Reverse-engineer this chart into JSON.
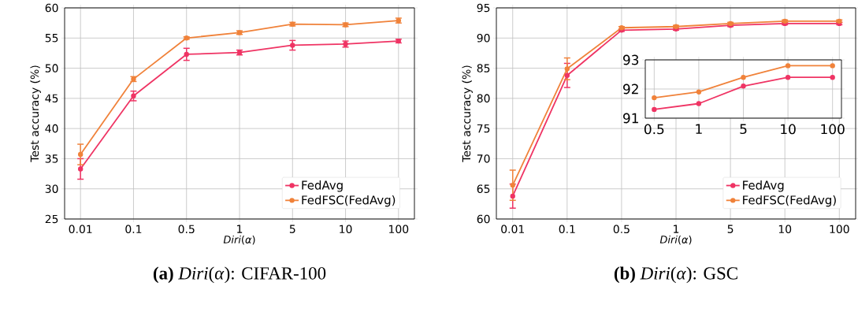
{
  "chart_data": [
    {
      "type": "line",
      "title": "**(a)** *Diri*(*α*): CIFAR-100",
      "xlabel": "*Diri*(*α*)",
      "ylabel": "Test accuracy (%)",
      "categories": [
        "0.01",
        "0.1",
        "0.5",
        "1",
        "5",
        "10",
        "100"
      ],
      "ylim": [
        25,
        60
      ],
      "yticks": [
        25,
        30,
        35,
        40,
        45,
        50,
        55,
        60
      ],
      "grid": true,
      "legend": "bottom right",
      "marker": "circle",
      "series": [
        {
          "name": "FedAvg",
          "color": "#ef3464",
          "values": [
            33.3,
            45.4,
            52.3,
            52.6,
            53.8,
            54.0,
            54.5
          ],
          "errors": [
            1.7,
            0.8,
            1.0,
            0.4,
            0.8,
            0.5,
            0.3
          ]
        },
        {
          "name": "FedFSC(FedAvg)",
          "color": "#f0823a",
          "values": [
            35.7,
            48.2,
            55.0,
            55.9,
            57.3,
            57.2,
            57.9
          ],
          "errors": [
            1.7,
            0.4,
            0.2,
            0.3,
            0.3,
            0.3,
            0.4
          ]
        }
      ]
    },
    {
      "type": "line",
      "title": "**(b)** *Diri*(*α*): GSC",
      "xlabel": "*Diri*(*α*)",
      "ylabel": "Test accuracy (%)",
      "categories": [
        "0.01",
        "0.1",
        "0.5",
        "1",
        "5",
        "10",
        "100"
      ],
      "ylim": [
        60,
        95
      ],
      "yticks": [
        60,
        65,
        70,
        75,
        80,
        85,
        90,
        95
      ],
      "grid": true,
      "legend": "bottom right",
      "marker": "circle",
      "series": [
        {
          "name": "FedAvg",
          "color": "#ef3464",
          "values": [
            63.8,
            83.8,
            91.3,
            91.5,
            92.1,
            92.4,
            92.4
          ],
          "errors": [
            2.0,
            2.0,
            0.2,
            0.2,
            0.2,
            0.2,
            0.2
          ]
        },
        {
          "name": "FedFSC(FedAvg)",
          "color": "#f0823a",
          "values": [
            65.6,
            84.9,
            91.7,
            91.9,
            92.4,
            92.8,
            92.8
          ],
          "errors": [
            2.5,
            1.8,
            0.2,
            0.2,
            0.2,
            0.2,
            0.2
          ]
        }
      ]
    },
    {
      "type": "line",
      "categories": [
        "0.5",
        "1",
        "5",
        "10",
        "100"
      ],
      "ylim": [
        91,
        93
      ],
      "yticks": [
        91,
        92,
        93
      ],
      "grid": true,
      "marker": "circle",
      "series": [
        {
          "color": "#ef3464",
          "values": [
            91.3,
            91.5,
            92.1,
            92.4,
            92.4
          ]
        },
        {
          "color": "#f0823a",
          "values": [
            91.7,
            91.9,
            92.4,
            92.8,
            92.8
          ]
        }
      ]
    }
  ]
}
